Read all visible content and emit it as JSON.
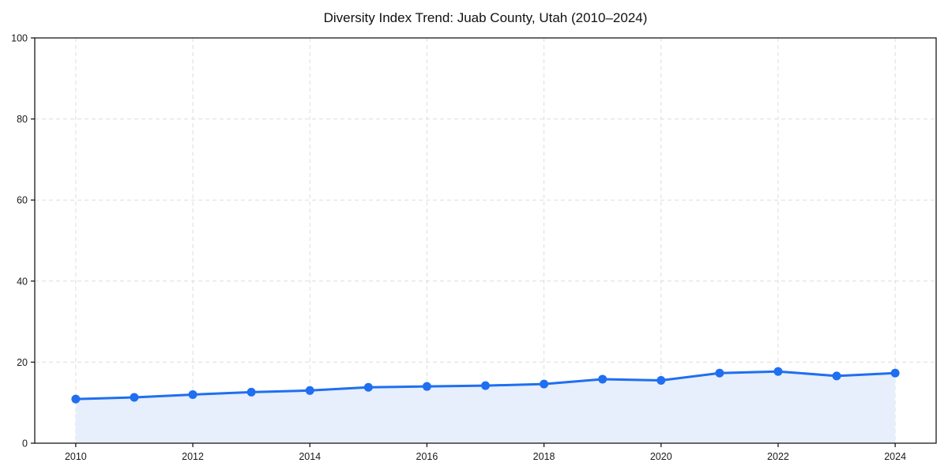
{
  "page": {
    "background": "#ffffff"
  },
  "chart_data": {
    "type": "line",
    "title": "Diversity Index Trend: Juab County, Utah (2010–2024)",
    "x": [
      2010,
      2011,
      2012,
      2013,
      2014,
      2015,
      2016,
      2017,
      2018,
      2019,
      2020,
      2021,
      2022,
      2023,
      2024
    ],
    "series": [
      {
        "name": "Diversity Index",
        "values": [
          10.9,
          11.3,
          12.0,
          12.6,
          13.0,
          13.8,
          14.0,
          14.2,
          14.6,
          15.8,
          15.5,
          17.3,
          17.7,
          16.6,
          17.3
        ]
      }
    ],
    "xlabel": "",
    "ylabel": "",
    "ylim": [
      0,
      100
    ],
    "yticks": [
      0,
      20,
      40,
      60,
      80,
      100
    ],
    "xticks": [
      2010,
      2012,
      2014,
      2016,
      2018,
      2020,
      2022,
      2024
    ],
    "x_margin_frac": 0.05,
    "grid": true,
    "grid_dash": "5 4",
    "legend_position": "none",
    "area_fill": true,
    "marker": "circle",
    "line_width": 3,
    "marker_radius": 5.5,
    "colors": {
      "line": "#1f6ff0",
      "marker": "#1f6ff0",
      "area": "#e7eefc",
      "grid": "#dddddd",
      "spine": "#1a1a1a",
      "tick_text": "#1a1a1a",
      "title_text": "#111111",
      "background": "#ffffff"
    }
  }
}
